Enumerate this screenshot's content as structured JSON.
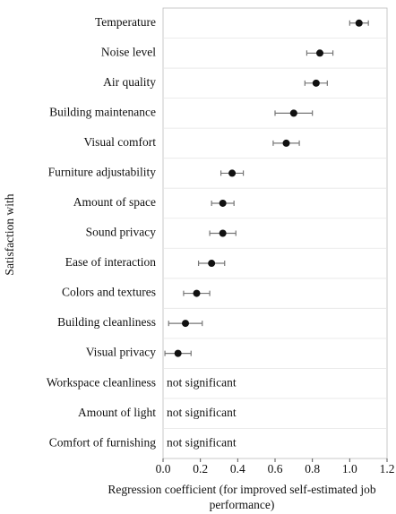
{
  "chart_data": {
    "type": "dot",
    "categories": [
      "Temperature",
      "Noise level",
      "Air quality",
      "Building maintenance",
      "Visual comfort",
      "Furniture adjustability",
      "Amount of space",
      "Sound privacy",
      "Ease of interaction",
      "Colors and textures",
      "Building cleanliness",
      "Visual privacy",
      "Workspace cleanliness",
      "Amount of light",
      "Comfort of furnishing"
    ],
    "values": [
      1.05,
      0.84,
      0.82,
      0.7,
      0.66,
      0.37,
      0.32,
      0.32,
      0.26,
      0.18,
      0.12,
      0.08,
      null,
      null,
      null
    ],
    "errors": [
      0.05,
      0.07,
      0.06,
      0.1,
      0.07,
      0.06,
      0.06,
      0.07,
      0.07,
      0.07,
      0.09,
      0.07,
      null,
      null,
      null
    ],
    "value_labels": [
      null,
      null,
      null,
      null,
      null,
      null,
      null,
      null,
      null,
      null,
      null,
      null,
      "not significant",
      "not significant",
      "not significant"
    ],
    "color": "#111111",
    "xlabel": "Regression coefficient (for improved self-estimated job performance)",
    "ylabel": "Satisfaction with",
    "xlim": [
      0,
      1.2
    ],
    "xticks": [
      {
        "value": 0,
        "label": "0.0"
      },
      0.2,
      0.4,
      0.6,
      0.8,
      {
        "value": 1,
        "label": "1.0"
      },
      1.2
    ],
    "grid": true
  }
}
